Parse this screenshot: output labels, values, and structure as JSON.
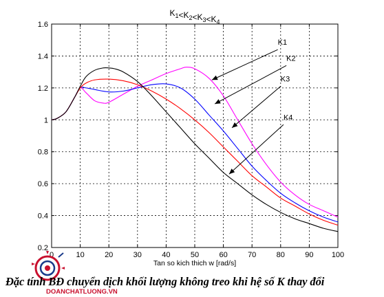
{
  "chart_data": {
    "type": "line",
    "title": "K1<K2<K3<K4",
    "title_parts": [
      {
        "t": "K",
        "s": "1"
      },
      {
        "t": "<K",
        "s": "2"
      },
      {
        "t": "<K",
        "s": "3"
      },
      {
        "t": "<K",
        "s": "4"
      }
    ],
    "xlabel": "Tan so kich thich w [rad/s]",
    "ylabel": "",
    "xlim": [
      0,
      100
    ],
    "ylim": [
      0.2,
      1.6
    ],
    "x_ticks": [
      0,
      10,
      20,
      30,
      40,
      50,
      60,
      70,
      80,
      90,
      100
    ],
    "y_ticks": [
      0.2,
      0.4,
      0.6,
      0.8,
      1,
      1.2,
      1.4,
      1.6
    ],
    "grid": true,
    "series": [
      {
        "name": "K1",
        "color": "#ff00ff",
        "x": [
          0,
          2,
          5,
          8,
          10,
          12,
          15,
          18,
          20,
          25,
          30,
          35,
          40,
          45,
          47,
          50,
          55,
          60,
          65,
          70,
          75,
          80,
          85,
          90,
          95,
          100
        ],
        "y": [
          1.0,
          1.01,
          1.05,
          1.14,
          1.2,
          1.17,
          1.12,
          1.105,
          1.11,
          1.16,
          1.21,
          1.25,
          1.29,
          1.32,
          1.33,
          1.32,
          1.26,
          1.15,
          1.0,
          0.85,
          0.72,
          0.61,
          0.53,
          0.47,
          0.43,
          0.39
        ]
      },
      {
        "name": "K2",
        "color": "#0000ff",
        "x": [
          0,
          2,
          5,
          8,
          10,
          12,
          15,
          20,
          25,
          30,
          35,
          40,
          45,
          50,
          55,
          60,
          65,
          70,
          75,
          80,
          85,
          90,
          95,
          100
        ],
        "y": [
          1.0,
          1.01,
          1.05,
          1.14,
          1.2,
          1.2,
          1.19,
          1.175,
          1.18,
          1.2,
          1.22,
          1.225,
          1.2,
          1.13,
          1.03,
          0.93,
          0.82,
          0.71,
          0.62,
          0.54,
          0.48,
          0.43,
          0.39,
          0.36
        ]
      },
      {
        "name": "K3",
        "color": "#ff0000",
        "x": [
          0,
          2,
          5,
          8,
          10,
          12,
          15,
          20,
          25,
          30,
          35,
          40,
          45,
          50,
          55,
          60,
          65,
          70,
          75,
          80,
          85,
          90,
          95,
          100
        ],
        "y": [
          1.0,
          1.01,
          1.05,
          1.14,
          1.2,
          1.23,
          1.25,
          1.255,
          1.245,
          1.22,
          1.18,
          1.13,
          1.07,
          1.0,
          0.92,
          0.83,
          0.74,
          0.65,
          0.58,
          0.51,
          0.46,
          0.41,
          0.37,
          0.34
        ]
      },
      {
        "name": "K4",
        "color": "#000000",
        "x": [
          0,
          2,
          5,
          8,
          10,
          12,
          15,
          18,
          20,
          22,
          25,
          30,
          35,
          40,
          45,
          50,
          55,
          60,
          65,
          70,
          75,
          80,
          85,
          90,
          95,
          100
        ],
        "y": [
          1.0,
          1.01,
          1.05,
          1.14,
          1.21,
          1.27,
          1.31,
          1.325,
          1.325,
          1.32,
          1.3,
          1.24,
          1.15,
          1.05,
          0.95,
          0.85,
          0.76,
          0.67,
          0.6,
          0.53,
          0.47,
          0.42,
          0.38,
          0.35,
          0.32,
          0.3
        ]
      }
    ],
    "annotations": [
      {
        "label": "K1",
        "series": "K1",
        "text_at": [
          79,
          1.47
        ],
        "arrow_from": [
          79,
          1.44
        ],
        "arrow_to": [
          56,
          1.25
        ]
      },
      {
        "label": "K2",
        "series": "K2",
        "text_at": [
          82,
          1.37
        ],
        "arrow_from": [
          82,
          1.34
        ],
        "arrow_to": [
          57,
          1.1
        ]
      },
      {
        "label": "K3",
        "series": "K3",
        "text_at": [
          80,
          1.24
        ],
        "arrow_from": [
          80,
          1.21
        ],
        "arrow_to": [
          63,
          0.95
        ]
      },
      {
        "label": "K4",
        "series": "K4",
        "text_at": [
          81,
          1.0
        ],
        "arrow_from": [
          81,
          0.97
        ],
        "arrow_to": [
          62,
          0.66
        ]
      }
    ]
  },
  "caption": "Đặc tính BĐ chuyển dịch khối lượng không treo khi hệ số K thay đổi",
  "logo": {
    "text": "DOANCHATLUONG.VN",
    "color": "#c8102e"
  }
}
